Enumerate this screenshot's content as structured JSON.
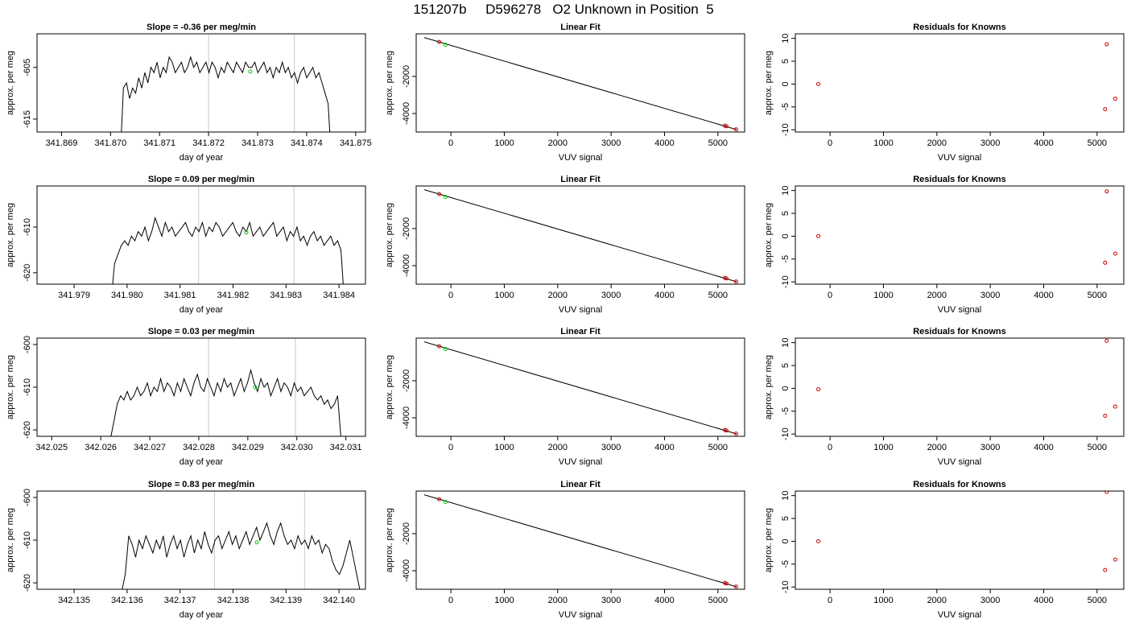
{
  "figure_title": "151207b     D596278   O2 Unknown in Position  5",
  "chart_data": [
    {
      "type": "line",
      "title": "Slope =  -0.36  per meg/min",
      "xlabel": "day of year",
      "ylabel": "approx. per meg",
      "xlim": [
        341.8685,
        341.8752
      ],
      "ylim": [
        -617.5,
        -598.5
      ],
      "xticks": [
        "341.869",
        "341.870",
        "341.871",
        "341.872",
        "341.873",
        "341.874",
        "341.875"
      ],
      "xtick_values": [
        341.869,
        341.87,
        341.871,
        341.872,
        341.873,
        341.874,
        341.875
      ],
      "yticks": [
        "-605",
        "-615"
      ],
      "ytick_values": [
        -605,
        -615
      ],
      "vlines": [
        341.872,
        341.87375
      ],
      "series": [
        {
          "x_start": 341.8702,
          "x_end": 341.8745,
          "values": [
            -622,
            -609,
            -608,
            -611,
            -609,
            -610,
            -607,
            -609,
            -606,
            -608,
            -605,
            -606,
            -604,
            -607,
            -605,
            -606,
            -603,
            -604,
            -606,
            -605,
            -604,
            -606,
            -605,
            -603,
            -605,
            -604,
            -606,
            -605,
            -604,
            -606,
            -604,
            -605,
            -607,
            -605,
            -606,
            -604,
            -605,
            -606,
            -604,
            -605,
            -606,
            -604,
            -605,
            -605,
            -604,
            -606,
            -605,
            -604,
            -606,
            -605,
            -607,
            -605,
            -606,
            -604,
            -606,
            -605,
            -607,
            -606,
            -608,
            -606,
            -605,
            -607,
            -606,
            -605,
            -607,
            -606,
            -608,
            -610,
            -612,
            -622
          ]
        }
      ],
      "markers": [
        {
          "x": 341.87285,
          "y": -605.8,
          "color": "#00cc00"
        }
      ]
    },
    {
      "type": "scatter",
      "title": "Linear Fit",
      "xlabel": "VUV signal",
      "ylabel": "approx. per meg",
      "xlim": [
        -650,
        5500
      ],
      "ylim": [
        -5000,
        300
      ],
      "xticks": [
        "0",
        "1000",
        "2000",
        "3000",
        "4000",
        "5000"
      ],
      "xtick_values": [
        0,
        1000,
        2000,
        3000,
        4000,
        5000
      ],
      "yticks": [
        "-2000",
        "-4000"
      ],
      "ytick_values": [
        -2000,
        -4000
      ],
      "fit_line": {
        "x0": -500,
        "y0": 100,
        "x1": 5350,
        "y1": -4870
      },
      "points": [
        {
          "x": -220,
          "y": -140,
          "color": "#cc0000"
        },
        {
          "x": -100,
          "y": -290,
          "color": "#00cc00"
        },
        {
          "x": 5130,
          "y": -4660,
          "color": "#cc0000"
        },
        {
          "x": 5160,
          "y": -4690,
          "color": "#cc0000"
        },
        {
          "x": 5340,
          "y": -4860,
          "color": "#cc0000"
        }
      ]
    },
    {
      "type": "scatter",
      "title": "Residuals for Knowns",
      "xlabel": "VUV signal",
      "ylabel": "approx. per meg",
      "xlim": [
        -650,
        5500
      ],
      "ylim": [
        -10.5,
        11
      ],
      "xticks": [
        "0",
        "1000",
        "2000",
        "3000",
        "4000",
        "5000"
      ],
      "xtick_values": [
        0,
        1000,
        2000,
        3000,
        4000,
        5000
      ],
      "yticks": [
        "-10",
        "-5",
        "0",
        "5",
        "10"
      ],
      "ytick_values": [
        -10,
        -5,
        0,
        5,
        10
      ],
      "points": [
        {
          "x": -220,
          "y": 0,
          "color": "#cc0000"
        },
        {
          "x": 5150,
          "y": -5.5,
          "color": "#cc0000"
        },
        {
          "x": 5180,
          "y": 8.7,
          "color": "#cc0000"
        },
        {
          "x": 5340,
          "y": -3.2,
          "color": "#cc0000"
        }
      ]
    },
    {
      "type": "line",
      "title": "Slope =  0.09  per meg/min",
      "xlabel": "day of year",
      "ylabel": "approx. per meg",
      "xlim": [
        341.9783,
        341.9845
      ],
      "ylim": [
        -622.5,
        -601
      ],
      "xticks": [
        "341.979",
        "341.980",
        "341.981",
        "341.982",
        "341.983",
        "341.984"
      ],
      "xtick_values": [
        341.979,
        341.98,
        341.981,
        341.982,
        341.983,
        341.984
      ],
      "yticks": [
        "-610",
        "-620"
      ],
      "ytick_values": [
        -610,
        -620
      ],
      "vlines": [
        341.98135,
        341.98315
      ],
      "series": [
        {
          "x_start": 341.9797,
          "x_end": 341.9841,
          "values": [
            -626,
            -618,
            -616,
            -614,
            -613,
            -614,
            -612,
            -613,
            -611,
            -612,
            -610,
            -613,
            -611,
            -608,
            -610,
            -612,
            -609,
            -611,
            -610,
            -612,
            -611,
            -610,
            -609,
            -611,
            -612,
            -610,
            -611,
            -609,
            -612,
            -610,
            -611,
            -609,
            -610,
            -612,
            -611,
            -610,
            -609,
            -611,
            -612,
            -610,
            -611,
            -609,
            -612,
            -611,
            -610,
            -612,
            -611,
            -610,
            -609,
            -612,
            -611,
            -610,
            -613,
            -611,
            -612,
            -610,
            -613,
            -612,
            -614,
            -612,
            -611,
            -613,
            -612,
            -614,
            -613,
            -612,
            -614,
            -613,
            -615,
            -626
          ]
        }
      ],
      "markers": [
        {
          "x": 341.98225,
          "y": -611.2,
          "color": "#00cc00"
        }
      ]
    },
    {
      "type": "scatter",
      "title": "Linear Fit",
      "xlabel": "VUV signal",
      "ylabel": "approx. per meg",
      "xlim": [
        -650,
        5500
      ],
      "ylim": [
        -5000,
        300
      ],
      "xticks": [
        "0",
        "1000",
        "2000",
        "3000",
        "4000",
        "5000"
      ],
      "xtick_values": [
        0,
        1000,
        2000,
        3000,
        4000,
        5000
      ],
      "yticks": [
        "-2000",
        "-4000"
      ],
      "ytick_values": [
        -2000,
        -4000
      ],
      "fit_line": {
        "x0": -500,
        "y0": 100,
        "x1": 5350,
        "y1": -4870
      },
      "points": [
        {
          "x": -220,
          "y": -140,
          "color": "#cc0000"
        },
        {
          "x": -100,
          "y": -290,
          "color": "#00cc00"
        },
        {
          "x": 5130,
          "y": -4660,
          "color": "#cc0000"
        },
        {
          "x": 5160,
          "y": -4690,
          "color": "#cc0000"
        },
        {
          "x": 5340,
          "y": -4860,
          "color": "#cc0000"
        }
      ]
    },
    {
      "type": "scatter",
      "title": "Residuals for Knowns",
      "xlabel": "VUV signal",
      "ylabel": "approx. per meg",
      "xlim": [
        -650,
        5500
      ],
      "ylim": [
        -10.5,
        11
      ],
      "xticks": [
        "0",
        "1000",
        "2000",
        "3000",
        "4000",
        "5000"
      ],
      "xtick_values": [
        0,
        1000,
        2000,
        3000,
        4000,
        5000
      ],
      "yticks": [
        "-10",
        "-5",
        "0",
        "5",
        "10"
      ],
      "ytick_values": [
        -10,
        -5,
        0,
        5,
        10
      ],
      "points": [
        {
          "x": -220,
          "y": 0,
          "color": "#cc0000"
        },
        {
          "x": 5150,
          "y": -5.8,
          "color": "#cc0000"
        },
        {
          "x": 5180,
          "y": 9.8,
          "color": "#cc0000"
        },
        {
          "x": 5340,
          "y": -3.8,
          "color": "#cc0000"
        }
      ]
    },
    {
      "type": "line",
      "title": "Slope =  0.03  per meg/min",
      "xlabel": "day of year",
      "ylabel": "approx. per meg",
      "xlim": [
        342.0247,
        342.0314
      ],
      "ylim": [
        -621.5,
        -598.5
      ],
      "xticks": [
        "342.025",
        "342.026",
        "342.027",
        "342.028",
        "342.029",
        "342.030",
        "342.031"
      ],
      "xtick_values": [
        342.025,
        342.026,
        342.027,
        342.028,
        342.029,
        342.03,
        342.031
      ],
      "yticks": [
        "-600",
        "-610",
        "-620"
      ],
      "ytick_values": [
        -600,
        -610,
        -620
      ],
      "vlines": [
        342.0282,
        342.02997
      ],
      "series": [
        {
          "x_start": 342.0262,
          "x_end": 342.0309,
          "values": [
            -622,
            -618,
            -614,
            -612,
            -613,
            -611,
            -613,
            -612,
            -610,
            -612,
            -611,
            -609,
            -612,
            -610,
            -611,
            -608,
            -611,
            -609,
            -610,
            -612,
            -609,
            -611,
            -608,
            -610,
            -612,
            -609,
            -607,
            -610,
            -611,
            -608,
            -610,
            -612,
            -609,
            -611,
            -608,
            -610,
            -609,
            -612,
            -610,
            -608,
            -611,
            -609,
            -606,
            -609,
            -611,
            -608,
            -610,
            -609,
            -612,
            -610,
            -608,
            -611,
            -609,
            -610,
            -612,
            -609,
            -611,
            -610,
            -612,
            -611,
            -610,
            -612,
            -613,
            -612,
            -614,
            -613,
            -615,
            -614,
            -612,
            -622
          ]
        }
      ],
      "markers": [
        {
          "x": 342.02915,
          "y": -610,
          "color": "#00cc00"
        }
      ]
    },
    {
      "type": "scatter",
      "title": "Linear Fit",
      "xlabel": "VUV signal",
      "ylabel": "approx. per meg",
      "xlim": [
        -650,
        5500
      ],
      "ylim": [
        -5000,
        300
      ],
      "xticks": [
        "0",
        "1000",
        "2000",
        "3000",
        "4000",
        "5000"
      ],
      "xtick_values": [
        0,
        1000,
        2000,
        3000,
        4000,
        5000
      ],
      "yticks": [
        "-2000",
        "-4000"
      ],
      "ytick_values": [
        -2000,
        -4000
      ],
      "fit_line": {
        "x0": -500,
        "y0": 100,
        "x1": 5350,
        "y1": -4870
      },
      "points": [
        {
          "x": -220,
          "y": -140,
          "color": "#cc0000"
        },
        {
          "x": -100,
          "y": -290,
          "color": "#00cc00"
        },
        {
          "x": 5130,
          "y": -4660,
          "color": "#cc0000"
        },
        {
          "x": 5160,
          "y": -4690,
          "color": "#cc0000"
        },
        {
          "x": 5340,
          "y": -4860,
          "color": "#cc0000"
        }
      ]
    },
    {
      "type": "scatter",
      "title": "Residuals for Knowns",
      "xlabel": "VUV signal",
      "ylabel": "approx. per meg",
      "xlim": [
        -650,
        5500
      ],
      "ylim": [
        -10.5,
        11
      ],
      "xticks": [
        "0",
        "1000",
        "2000",
        "3000",
        "4000",
        "5000"
      ],
      "xtick_values": [
        0,
        1000,
        2000,
        3000,
        4000,
        5000
      ],
      "yticks": [
        "-10",
        "-5",
        "0",
        "5",
        "10"
      ],
      "ytick_values": [
        -10,
        -5,
        0,
        5,
        10
      ],
      "points": [
        {
          "x": -220,
          "y": -0.2,
          "color": "#cc0000"
        },
        {
          "x": 5150,
          "y": -6,
          "color": "#cc0000"
        },
        {
          "x": 5180,
          "y": 10.4,
          "color": "#cc0000"
        },
        {
          "x": 5340,
          "y": -4,
          "color": "#cc0000"
        }
      ]
    },
    {
      "type": "line",
      "title": "Slope =  0.83  per meg/min",
      "xlabel": "day of year",
      "ylabel": "approx. per meg",
      "xlim": [
        342.1343,
        342.1405
      ],
      "ylim": [
        -621.5,
        -598.5
      ],
      "xticks": [
        "342.135",
        "342.136",
        "342.137",
        "342.138",
        "342.139",
        "342.140"
      ],
      "xtick_values": [
        342.135,
        342.136,
        342.137,
        342.138,
        342.139,
        342.14
      ],
      "yticks": [
        "-600",
        "-610",
        "-620"
      ],
      "ytick_values": [
        -600,
        -610,
        -620
      ],
      "vlines": [
        342.13765,
        342.13935
      ],
      "series": [
        {
          "x_start": 342.1359,
          "x_end": 342.1404,
          "values": [
            -622,
            -618,
            -609,
            -611,
            -614,
            -610,
            -612,
            -609,
            -611,
            -613,
            -610,
            -612,
            -609,
            -614,
            -611,
            -609,
            -612,
            -610,
            -614,
            -611,
            -609,
            -613,
            -610,
            -612,
            -608,
            -611,
            -613,
            -610,
            -609,
            -612,
            -610,
            -608,
            -611,
            -609,
            -612,
            -610,
            -608,
            -611,
            -609,
            -607,
            -610,
            -608,
            -606,
            -609,
            -611,
            -608,
            -606,
            -609,
            -611,
            -610,
            -612,
            -609,
            -611,
            -610,
            -612,
            -609,
            -611,
            -610,
            -613,
            -611,
            -612,
            -615,
            -617,
            -618,
            -616,
            -613,
            -610,
            -614,
            -618,
            -622
          ]
        }
      ],
      "markers": [
        {
          "x": 342.13845,
          "y": -610.5,
          "color": "#00cc00"
        }
      ]
    },
    {
      "type": "scatter",
      "title": "Linear Fit",
      "xlabel": "VUV signal",
      "ylabel": "approx. per meg",
      "xlim": [
        -650,
        5500
      ],
      "ylim": [
        -5000,
        300
      ],
      "xticks": [
        "0",
        "1000",
        "2000",
        "3000",
        "4000",
        "5000"
      ],
      "xtick_values": [
        0,
        1000,
        2000,
        3000,
        4000,
        5000
      ],
      "yticks": [
        "-2000",
        "-4000"
      ],
      "ytick_values": [
        -2000,
        -4000
      ],
      "fit_line": {
        "x0": -500,
        "y0": 100,
        "x1": 5350,
        "y1": -4870
      },
      "points": [
        {
          "x": -220,
          "y": -140,
          "color": "#cc0000"
        },
        {
          "x": -100,
          "y": -290,
          "color": "#00cc00"
        },
        {
          "x": 5130,
          "y": -4660,
          "color": "#cc0000"
        },
        {
          "x": 5160,
          "y": -4690,
          "color": "#cc0000"
        },
        {
          "x": 5340,
          "y": -4860,
          "color": "#cc0000"
        }
      ]
    },
    {
      "type": "scatter",
      "title": "Residuals for Knowns",
      "xlabel": "VUV signal",
      "ylabel": "approx. per meg",
      "xlim": [
        -650,
        5500
      ],
      "ylim": [
        -10.5,
        11
      ],
      "xticks": [
        "0",
        "1000",
        "2000",
        "3000",
        "4000",
        "5000"
      ],
      "xtick_values": [
        0,
        1000,
        2000,
        3000,
        4000,
        5000
      ],
      "yticks": [
        "-10",
        "-5",
        "0",
        "5",
        "10"
      ],
      "ytick_values": [
        -10,
        -5,
        0,
        5,
        10
      ],
      "points": [
        {
          "x": -220,
          "y": 0,
          "color": "#cc0000"
        },
        {
          "x": 5150,
          "y": -6.3,
          "color": "#cc0000"
        },
        {
          "x": 5180,
          "y": 10.8,
          "color": "#cc0000"
        },
        {
          "x": 5340,
          "y": -4,
          "color": "#cc0000"
        }
      ]
    }
  ]
}
